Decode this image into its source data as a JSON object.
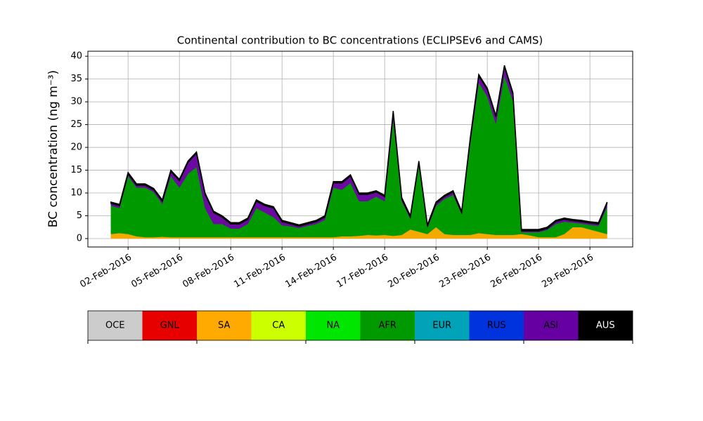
{
  "chart_data": {
    "type": "stacked_area",
    "title": "Continental contribution to BC concentrations (ECLIPSEv6 and CAMS)",
    "y_label": "BC concentration (ng m⁻³)",
    "x": [
      1,
      1.5,
      2,
      2.5,
      3,
      3.5,
      4,
      4.5,
      5,
      5.5,
      6,
      6.5,
      7,
      7.5,
      8,
      8.5,
      9,
      9.5,
      10,
      10.5,
      11,
      11.5,
      12,
      12.5,
      13,
      13.5,
      14,
      14.5,
      15,
      15.5,
      16,
      16.5,
      17,
      17.5,
      18,
      18.5,
      19,
      19.5,
      20,
      20.5,
      21,
      21.5,
      22,
      22.5,
      23,
      23.5,
      24,
      24.5,
      25,
      25.5,
      26,
      26.5,
      27,
      27.5,
      28,
      28.5,
      29,
      29.5,
      30
    ],
    "series": [
      {
        "name": "SA",
        "color": "#f5a800",
        "values": [
          1.0,
          1.2,
          1.0,
          0.5,
          0.3,
          0.3,
          0.4,
          0.3,
          0.3,
          0.3,
          0.3,
          0.3,
          0.3,
          0.3,
          0.3,
          0.3,
          0.3,
          0.3,
          0.3,
          0.3,
          0.3,
          0.3,
          0.3,
          0.3,
          0.3,
          0.3,
          0.3,
          0.5,
          0.5,
          0.6,
          0.8,
          0.7,
          0.8,
          0.6,
          0.8,
          2.0,
          1.5,
          1.0,
          2.5,
          1.0,
          0.8,
          0.8,
          0.8,
          1.2,
          1.0,
          0.8,
          0.8,
          0.8,
          1.0,
          0.7,
          0.3,
          0.3,
          0.3,
          1.0,
          2.5,
          2.5,
          2.0,
          1.5,
          1.0
        ]
      },
      {
        "name": "AFR",
        "color": "#009a00",
        "values": [
          6.2,
          5.5,
          12.7,
          10.7,
          10.9,
          9.9,
          7.2,
          13.4,
          10.9,
          13.9,
          15.4,
          6.4,
          2.9,
          2.9,
          1.9,
          1.9,
          2.9,
          6.4,
          5.4,
          4.4,
          2.6,
          2.4,
          2.0,
          2.5,
          2.9,
          3.8,
          10.9,
          10.2,
          11.7,
          7.6,
          7.4,
          8.5,
          7.4,
          25.6,
          7.4,
          2.4,
          14.7,
          1.4,
          4.7,
          7.7,
          8.8,
          4.6,
          19.9,
          33.0,
          30.2,
          24.4,
          34.9,
          29.4,
          0.4,
          0.7,
          1.1,
          1.6,
          2.9,
          2.7,
          1.0,
          0.8,
          1.0,
          1.3,
          5.9
        ]
      },
      {
        "name": "ASI",
        "color": "#6a0aa0",
        "values": [
          0.5,
          0.5,
          0.5,
          0.5,
          0.5,
          0.5,
          0.6,
          1.0,
          1.5,
          2.5,
          3.0,
          3.0,
          2.5,
          1.5,
          1.0,
          1.0,
          1.0,
          1.5,
          1.5,
          2.0,
          0.8,
          0.5,
          0.4,
          0.4,
          0.5,
          0.6,
          1.0,
          1.5,
          1.5,
          1.5,
          1.5,
          1.0,
          1.0,
          1.5,
          0.5,
          0.3,
          0.5,
          0.3,
          0.5,
          0.5,
          0.6,
          0.3,
          1.0,
          1.5,
          1.5,
          1.5,
          2.0,
          1.5,
          0.3,
          0.3,
          0.3,
          0.3,
          0.5,
          0.5,
          0.4,
          0.4,
          0.4,
          0.4,
          0.8
        ]
      },
      {
        "name": "AUS",
        "color": "#000000",
        "values": [
          0.3,
          0.3,
          0.3,
          0.3,
          0.3,
          0.3,
          0.3,
          0.3,
          0.3,
          0.3,
          0.3,
          0.3,
          0.3,
          0.3,
          0.3,
          0.3,
          0.3,
          0.3,
          0.3,
          0.3,
          0.3,
          0.3,
          0.3,
          0.3,
          0.3,
          0.3,
          0.3,
          0.3,
          0.3,
          0.3,
          0.3,
          0.3,
          0.3,
          0.3,
          0.3,
          0.3,
          0.3,
          0.3,
          0.3,
          0.3,
          0.3,
          0.3,
          0.3,
          0.3,
          0.3,
          0.3,
          0.3,
          0.3,
          0.3,
          0.3,
          0.3,
          0.3,
          0.3,
          0.3,
          0.3,
          0.3,
          0.3,
          0.3,
          0.3
        ]
      }
    ],
    "xlim": [
      -0.35,
      31.5
    ],
    "xticks": [
      {
        "value": 2,
        "label": "02-Feb-2016"
      },
      {
        "value": 5,
        "label": "05-Feb-2016"
      },
      {
        "value": 8,
        "label": "08-Feb-2016"
      },
      {
        "value": 11,
        "label": "11-Feb-2016"
      },
      {
        "value": 14,
        "label": "14-Feb-2016"
      },
      {
        "value": 17,
        "label": "17-Feb-2016"
      },
      {
        "value": 20,
        "label": "20-Feb-2016"
      },
      {
        "value": 23,
        "label": "23-Feb-2016"
      },
      {
        "value": 26,
        "label": "26-Feb-2016"
      },
      {
        "value": 29,
        "label": "29-Feb-2016"
      }
    ],
    "ylim": [
      -1.85,
      41.1
    ],
    "yticks": [
      0,
      5,
      10,
      15,
      20,
      25,
      30,
      35,
      40
    ],
    "grid": true,
    "colorbar": [
      {
        "label": "OCE",
        "color": "#cccccc"
      },
      {
        "label": "GNL",
        "color": "#e60000"
      },
      {
        "label": "SA",
        "color": "#ffaa00"
      },
      {
        "label": "CA",
        "color": "#ccff00"
      },
      {
        "label": "NA",
        "color": "#00e600"
      },
      {
        "label": "AFR",
        "color": "#009900"
      },
      {
        "label": "EUR",
        "color": "#00a3b8"
      },
      {
        "label": "RUS",
        "color": "#0033dd"
      },
      {
        "label": "ASI",
        "color": "#6600a3"
      },
      {
        "label": "AUS",
        "color": "#000000"
      }
    ]
  }
}
